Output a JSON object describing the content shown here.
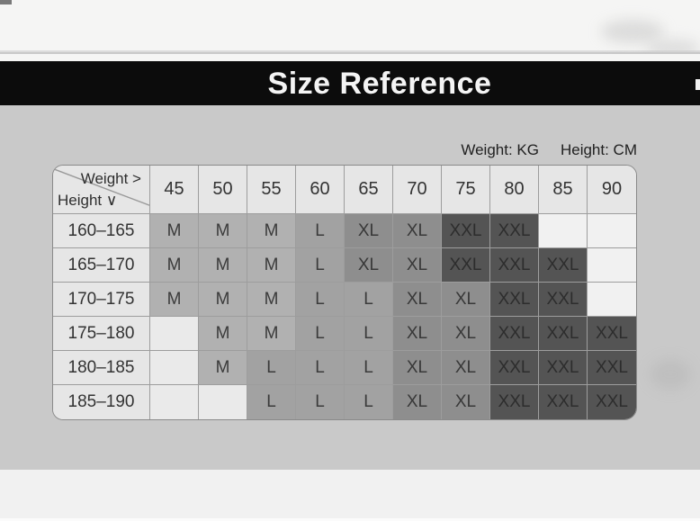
{
  "banner": {
    "title": "Size Reference"
  },
  "units": {
    "weight": "Weight: KG",
    "height": "Height: CM"
  },
  "table": {
    "corner": {
      "weight_label": "Weight >",
      "height_label": "Height ∨"
    },
    "weight_columns": [
      "45",
      "50",
      "55",
      "60",
      "65",
      "70",
      "75",
      "80",
      "85",
      "90"
    ],
    "rows": [
      {
        "height_range": "160–165",
        "sizes": [
          "M",
          "M",
          "M",
          "L",
          "XL",
          "XL",
          "XXL",
          "XXL",
          "",
          ""
        ]
      },
      {
        "height_range": "165–170",
        "sizes": [
          "M",
          "M",
          "M",
          "L",
          "XL",
          "XL",
          "XXL",
          "XXL",
          "XXL",
          ""
        ]
      },
      {
        "height_range": "170–175",
        "sizes": [
          "M",
          "M",
          "M",
          "L",
          "L",
          "XL",
          "XL",
          "XXL",
          "XXL",
          ""
        ]
      },
      {
        "height_range": "175–180",
        "sizes": [
          "",
          "M",
          "M",
          "L",
          "L",
          "XL",
          "XL",
          "XXL",
          "XXL",
          "XXL"
        ]
      },
      {
        "height_range": "180–185",
        "sizes": [
          "",
          "M",
          "L",
          "L",
          "L",
          "XL",
          "XL",
          "XXL",
          "XXL",
          "XXL"
        ]
      },
      {
        "height_range": "185–190",
        "sizes": [
          "",
          "",
          "L",
          "L",
          "L",
          "XL",
          "XL",
          "XXL",
          "XXL",
          "XXL"
        ]
      }
    ]
  },
  "colors": {
    "banner-bg": "#0c0c0c",
    "body-bg": "#c9c9c9",
    "top-bg": "#f5f5f4",
    "bottom-bg": "#f1f1f1",
    "header-bg": "#e6e6e6",
    "border": "#9d9d9d",
    "m-bg": "#b1b1b1",
    "l-bg": "#a2a2a2",
    "xl-bg": "#8e8e8e",
    "xxl-bg": "#545454",
    "empty-light": "#eaeaea",
    "empty-white": "#f1f1f1"
  }
}
